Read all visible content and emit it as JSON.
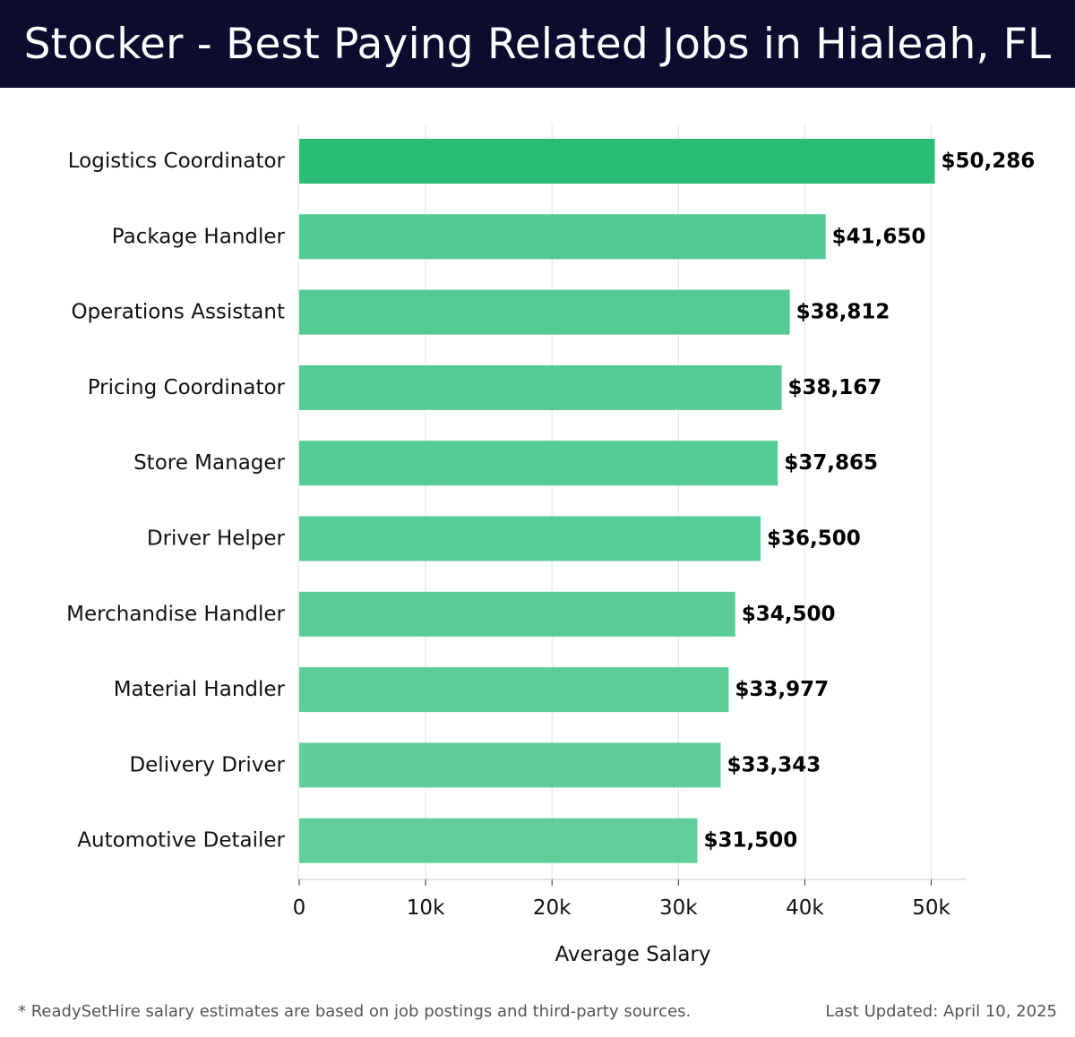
{
  "header": {
    "title": "Stocker - Best Paying Related Jobs in Hialeah, FL"
  },
  "chart_data": {
    "type": "bar",
    "orientation": "horizontal",
    "categories": [
      "Logistics Coordinator",
      "Package Handler",
      "Operations Assistant",
      "Pricing Coordinator",
      "Store Manager",
      "Driver Helper",
      "Merchandise Handler",
      "Material Handler",
      "Delivery Driver",
      "Automotive Detailer"
    ],
    "values": [
      50286,
      41650,
      38812,
      38167,
      37865,
      36500,
      34500,
      33977,
      33343,
      31500
    ],
    "value_labels": [
      "$50,286",
      "$41,650",
      "$38,812",
      "$38,167",
      "$37,865",
      "$36,500",
      "$34,500",
      "$33,977",
      "$33,343",
      "$31,500"
    ],
    "xlabel": "Average Salary",
    "ylabel": "",
    "xlim": [
      0,
      52800
    ],
    "xticks": [
      0,
      10000,
      20000,
      30000,
      40000,
      50000
    ],
    "xtick_labels": [
      "0",
      "10k",
      "20k",
      "30k",
      "40k",
      "50k"
    ],
    "grid": "vertical",
    "bar_colors": {
      "top": "#2bbd73",
      "others": "#4ec98e"
    }
  },
  "footer": {
    "note": "* ReadySetHire salary estimates are based on job postings and third-party sources.",
    "updated": "Last Updated: April 10, 2025"
  }
}
